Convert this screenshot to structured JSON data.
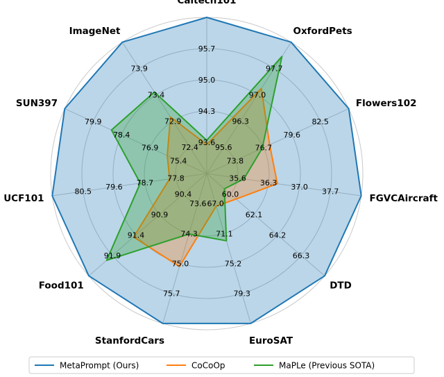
{
  "chart_data": {
    "type": "radar",
    "categories": [
      "Caltech101",
      "OxfordPets",
      "Flowers102",
      "FGVCAircraft",
      "DTD",
      "EuroSAT",
      "StanfordCars",
      "Food101",
      "UCF101",
      "SUN397",
      "ImageNet"
    ],
    "axis_ticks": [
      [
        "95.7",
        "95.0",
        "94.3",
        "93.6"
      ],
      [
        "97.7",
        "97.0",
        "96.3",
        "95.6"
      ],
      [
        "82.5",
        "79.6",
        "76.7",
        "73.8"
      ],
      [
        "37.7",
        "37.0",
        "36.3",
        "35.6"
      ],
      [
        "66.3",
        "64.2",
        "62.1",
        "60.0"
      ],
      [
        "79.3",
        "75.2",
        "71.1",
        "67.0"
      ],
      [
        "75.7",
        "75.0",
        "74.3",
        "73.6"
      ],
      [
        "91.9",
        "91.4",
        "90.9",
        "90.4"
      ],
      [
        "80.5",
        "79.6",
        "78.7",
        "77.8"
      ],
      [
        "79.9",
        "78.4",
        "76.9",
        "75.4"
      ],
      [
        "73.9",
        "73.4",
        "72.9",
        "72.4"
      ]
    ],
    "axis_min": [
      92.9,
      94.9,
      70.9,
      34.9,
      57.9,
      62.9,
      72.9,
      89.9,
      76.9,
      73.9,
      71.9
    ],
    "axis_max": [
      96.4,
      98.4,
      85.4,
      38.4,
      68.4,
      83.4,
      76.4,
      92.4,
      81.4,
      81.4,
      74.4
    ],
    "series": [
      {
        "name": "MetaPrompt (Ours)",
        "color": "#1f77b4",
        "values": [
          96.4,
          98.4,
          85.4,
          38.4,
          68.4,
          83.4,
          76.4,
          92.4,
          81.4,
          81.4,
          74.4
        ]
      },
      {
        "name": "CoCoOp",
        "color": "#ff7f0e",
        "values": [
          93.4,
          97.1,
          76.9,
          36.4,
          60.1,
          66.5,
          75.0,
          91.4,
          77.8,
          75.7,
          72.9
        ]
      },
      {
        "name": "MaPLe (Previous SOTA)",
        "color": "#2ca02c",
        "values": [
          93.5,
          98.0,
          76.1,
          35.6,
          59.0,
          71.5,
          74.2,
          92.0,
          78.7,
          78.8,
          73.4
        ]
      }
    ],
    "grid": true,
    "legend": "bottom"
  }
}
